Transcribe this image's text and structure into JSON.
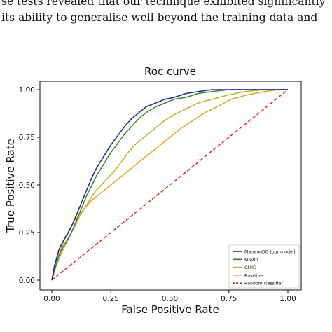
{
  "paper_text": {
    "line1": "se tests revealed that our technique exhibited significantly",
    "line2": "its ability to generalise well beyond the training data and"
  },
  "chart_data": {
    "type": "line",
    "title": "Roc curve",
    "xlabel": "False Positive Rate",
    "ylabel": "True Positive Rate",
    "xlim": [
      0,
      1
    ],
    "ylim": [
      0,
      1
    ],
    "xticks": [
      "0.00",
      "0.25",
      "0.50",
      "0.75",
      "1.00"
    ],
    "yticks": [
      "0.00",
      "0.25",
      "0.50",
      "0.75",
      "1.00"
    ],
    "grid": false,
    "legend_position": "lower-right",
    "series": [
      {
        "name": "MammoDG (our model)",
        "color": "#1f1fb4",
        "style": "solid",
        "points": [
          [
            0,
            0
          ],
          [
            0.01,
            0.07
          ],
          [
            0.03,
            0.16
          ],
          [
            0.05,
            0.21
          ],
          [
            0.07,
            0.25
          ],
          [
            0.09,
            0.3
          ],
          [
            0.11,
            0.36
          ],
          [
            0.13,
            0.42
          ],
          [
            0.15,
            0.48
          ],
          [
            0.17,
            0.54
          ],
          [
            0.19,
            0.59
          ],
          [
            0.21,
            0.63
          ],
          [
            0.23,
            0.67
          ],
          [
            0.25,
            0.71
          ],
          [
            0.28,
            0.76
          ],
          [
            0.31,
            0.81
          ],
          [
            0.34,
            0.85
          ],
          [
            0.37,
            0.88
          ],
          [
            0.4,
            0.91
          ],
          [
            0.44,
            0.93
          ],
          [
            0.48,
            0.95
          ],
          [
            0.52,
            0.96
          ],
          [
            0.57,
            0.98
          ],
          [
            0.62,
            0.99
          ],
          [
            0.68,
            1.0
          ],
          [
            0.8,
            1.0
          ],
          [
            1.0,
            1.0
          ]
        ]
      },
      {
        "name": "MSVCL",
        "color": "#2e8b2e",
        "style": "solid",
        "points": [
          [
            0,
            0
          ],
          [
            0.01,
            0.05
          ],
          [
            0.03,
            0.13
          ],
          [
            0.05,
            0.18
          ],
          [
            0.07,
            0.22
          ],
          [
            0.09,
            0.27
          ],
          [
            0.11,
            0.33
          ],
          [
            0.13,
            0.39
          ],
          [
            0.15,
            0.45
          ],
          [
            0.17,
            0.5
          ],
          [
            0.19,
            0.55
          ],
          [
            0.21,
            0.59
          ],
          [
            0.23,
            0.63
          ],
          [
            0.25,
            0.67
          ],
          [
            0.28,
            0.72
          ],
          [
            0.31,
            0.77
          ],
          [
            0.34,
            0.81
          ],
          [
            0.37,
            0.85
          ],
          [
            0.4,
            0.88
          ],
          [
            0.44,
            0.91
          ],
          [
            0.48,
            0.93
          ],
          [
            0.52,
            0.95
          ],
          [
            0.57,
            0.96
          ],
          [
            0.62,
            0.98
          ],
          [
            0.68,
            0.99
          ],
          [
            0.75,
            1.0
          ],
          [
            1.0,
            1.0
          ]
        ]
      },
      {
        "name": "GMIC",
        "color": "#b5b52a",
        "style": "solid",
        "points": [
          [
            0,
            0
          ],
          [
            0.02,
            0.08
          ],
          [
            0.04,
            0.14
          ],
          [
            0.06,
            0.19
          ],
          [
            0.08,
            0.24
          ],
          [
            0.1,
            0.29
          ],
          [
            0.12,
            0.34
          ],
          [
            0.14,
            0.38
          ],
          [
            0.16,
            0.42
          ],
          [
            0.18,
            0.46
          ],
          [
            0.21,
            0.5
          ],
          [
            0.24,
            0.54
          ],
          [
            0.27,
            0.58
          ],
          [
            0.3,
            0.63
          ],
          [
            0.33,
            0.68
          ],
          [
            0.36,
            0.72
          ],
          [
            0.4,
            0.76
          ],
          [
            0.44,
            0.8
          ],
          [
            0.48,
            0.84
          ],
          [
            0.52,
            0.87
          ],
          [
            0.57,
            0.9
          ],
          [
            0.62,
            0.93
          ],
          [
            0.68,
            0.95
          ],
          [
            0.74,
            0.97
          ],
          [
            0.82,
            0.99
          ],
          [
            0.9,
            1.0
          ],
          [
            1.0,
            1.0
          ]
        ]
      },
      {
        "name": "Baseline",
        "color": "#e8a317",
        "style": "solid",
        "points": [
          [
            0,
            0
          ],
          [
            0.02,
            0.1
          ],
          [
            0.04,
            0.17
          ],
          [
            0.06,
            0.23
          ],
          [
            0.08,
            0.28
          ],
          [
            0.1,
            0.32
          ],
          [
            0.12,
            0.35
          ],
          [
            0.14,
            0.38
          ],
          [
            0.17,
            0.42
          ],
          [
            0.2,
            0.45
          ],
          [
            0.23,
            0.48
          ],
          [
            0.26,
            0.51
          ],
          [
            0.3,
            0.55
          ],
          [
            0.34,
            0.59
          ],
          [
            0.38,
            0.63
          ],
          [
            0.42,
            0.67
          ],
          [
            0.46,
            0.71
          ],
          [
            0.5,
            0.75
          ],
          [
            0.55,
            0.8
          ],
          [
            0.6,
            0.84
          ],
          [
            0.65,
            0.88
          ],
          [
            0.7,
            0.91
          ],
          [
            0.76,
            0.95
          ],
          [
            0.82,
            0.97
          ],
          [
            0.9,
            0.99
          ],
          [
            0.96,
            1.0
          ],
          [
            1.0,
            1.0
          ]
        ]
      },
      {
        "name": "Random classifier",
        "color": "#e02020",
        "style": "dashed",
        "points": [
          [
            0,
            0
          ],
          [
            1,
            1
          ]
        ]
      }
    ]
  }
}
